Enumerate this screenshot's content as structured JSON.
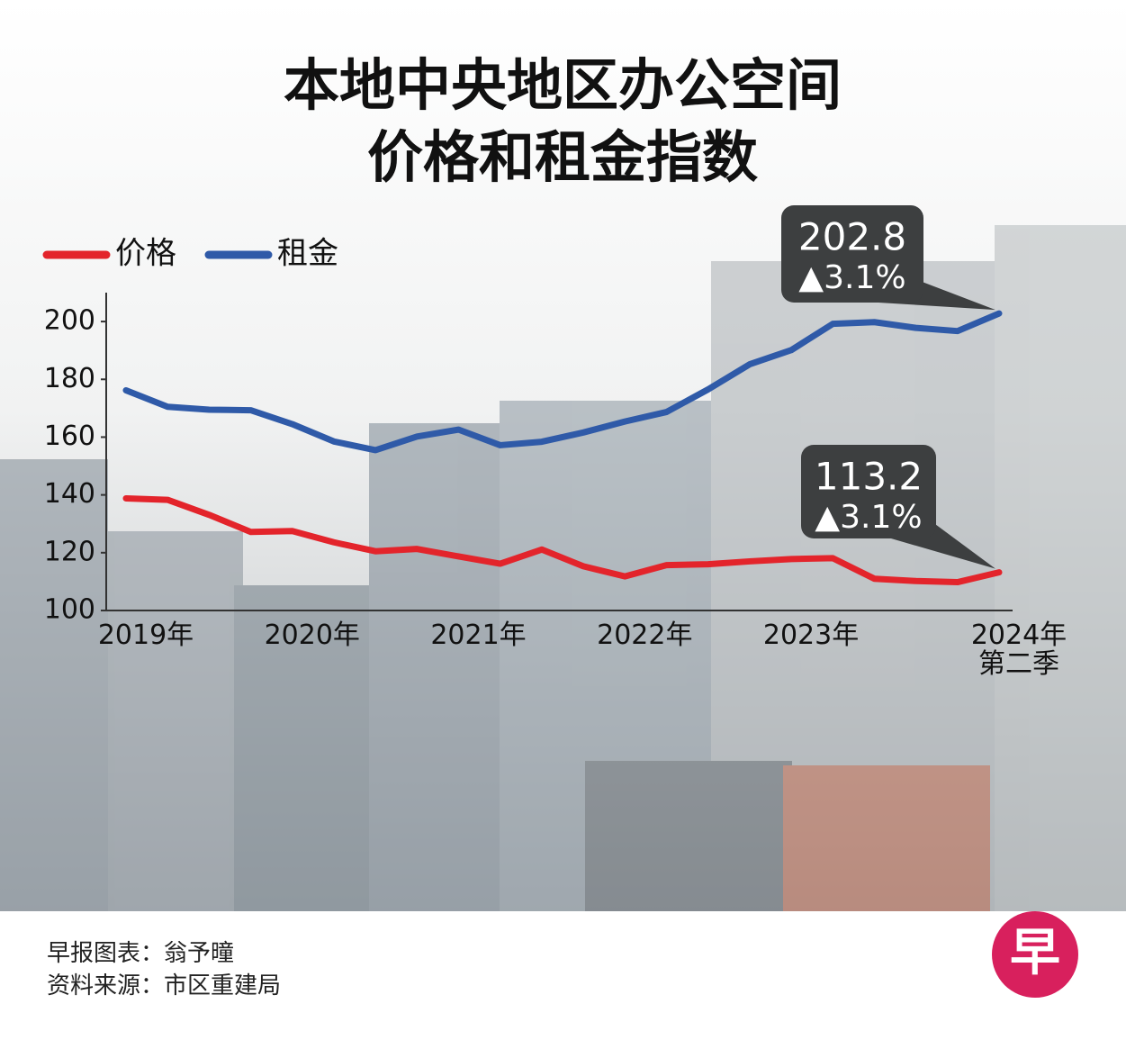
{
  "chart_data": {
    "type": "line",
    "title": "本地中央地区办公空间价格和租金指数",
    "categories": [
      "2019年",
      null,
      null,
      null,
      "2020年",
      null,
      null,
      null,
      "2021年",
      null,
      null,
      null,
      "2022年",
      null,
      null,
      null,
      "2023年",
      null,
      null,
      null,
      null,
      "2024年\n第二季"
    ],
    "series": [
      {
        "name": "租金",
        "color": "#2f5aa8",
        "change": "▲3.1%",
        "values": [
          176.2,
          170.5,
          169.5,
          169.3,
          164.5,
          158.5,
          155.5,
          160.2,
          162.6,
          157.2,
          158.4,
          161.6,
          165.4,
          168.7,
          176.5,
          185.2,
          190.1,
          199.2,
          199.8,
          197.8,
          196.7,
          202.8
        ]
      },
      {
        "name": "价格",
        "color": "#e3242b",
        "change": "▲3.1%",
        "values": [
          138.8,
          138.3,
          133.1,
          127.2,
          127.5,
          123.6,
          120.5,
          121.3,
          118.7,
          116.2,
          121.1,
          115.3,
          111.8,
          115.7,
          116.0,
          117.0,
          117.8,
          118.1,
          111.0,
          110.2,
          109.8,
          113.2
        ]
      }
    ],
    "legend_order": [
      1,
      0
    ],
    "ylim": [
      100,
      210
    ],
    "yticks": [
      100,
      120,
      140,
      160,
      180,
      200
    ],
    "credits": [
      "早报图表：翁予曈",
      "资料来源：市区重建局"
    ],
    "logo": "早"
  }
}
